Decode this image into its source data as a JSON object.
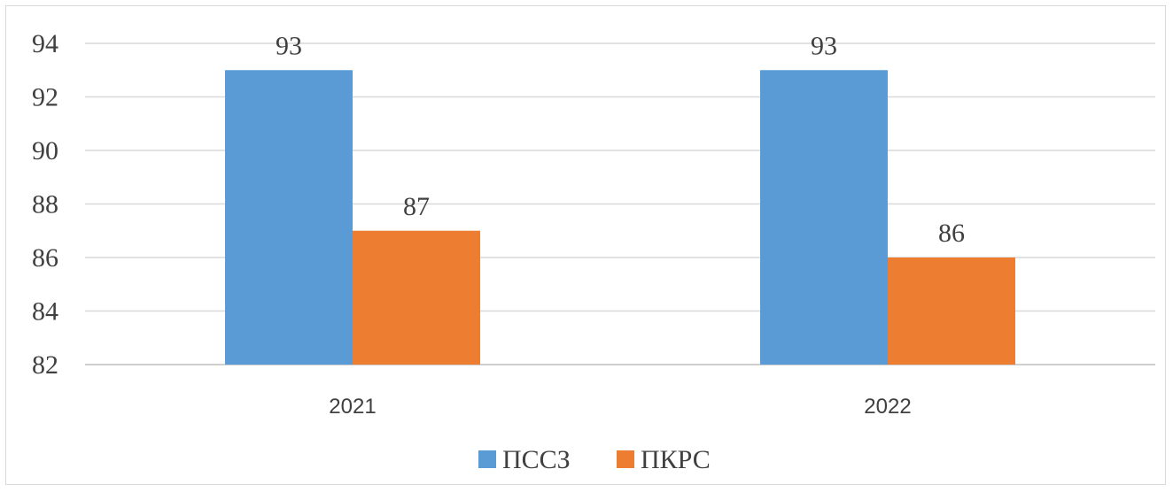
{
  "chart_data": {
    "type": "bar",
    "categories": [
      "2021",
      "2022"
    ],
    "series": [
      {
        "name": "ПССЗ",
        "values": [
          93,
          93
        ],
        "color": "#5b9bd5"
      },
      {
        "name": "ПКРС",
        "values": [
          87,
          86
        ],
        "color": "#ed7d31"
      }
    ],
    "ylim": [
      82,
      94
    ],
    "yticks": [
      "82",
      "84",
      "86",
      "88",
      "90",
      "92",
      "94"
    ],
    "grid": true,
    "legend": "bottom"
  }
}
